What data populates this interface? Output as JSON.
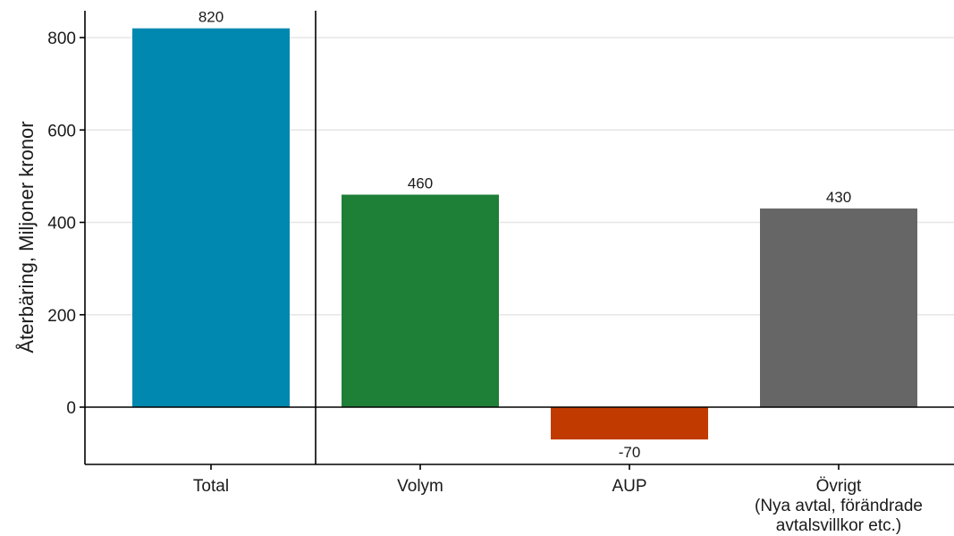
{
  "chart_data": {
    "type": "bar",
    "title": "",
    "xlabel": "",
    "ylabel": "Återbäring, Miljoner kronor",
    "ylim": [
      -125,
      870
    ],
    "yticks": [
      0,
      200,
      400,
      600,
      800
    ],
    "grid": true,
    "categories": [
      [
        "Total"
      ],
      [
        "Volym"
      ],
      [
        "AUP"
      ],
      [
        "Övrigt",
        "(Nya avtal, förändrade",
        "avtalsvillkor etc.)"
      ]
    ],
    "values": [
      820,
      460,
      -70,
      430
    ],
    "data_labels": [
      "820",
      "460",
      "-70",
      "430"
    ],
    "colors": [
      "#0088B0",
      "#1E7F37",
      "#C13B00",
      "#666666"
    ],
    "separator_after_category": 0
  }
}
